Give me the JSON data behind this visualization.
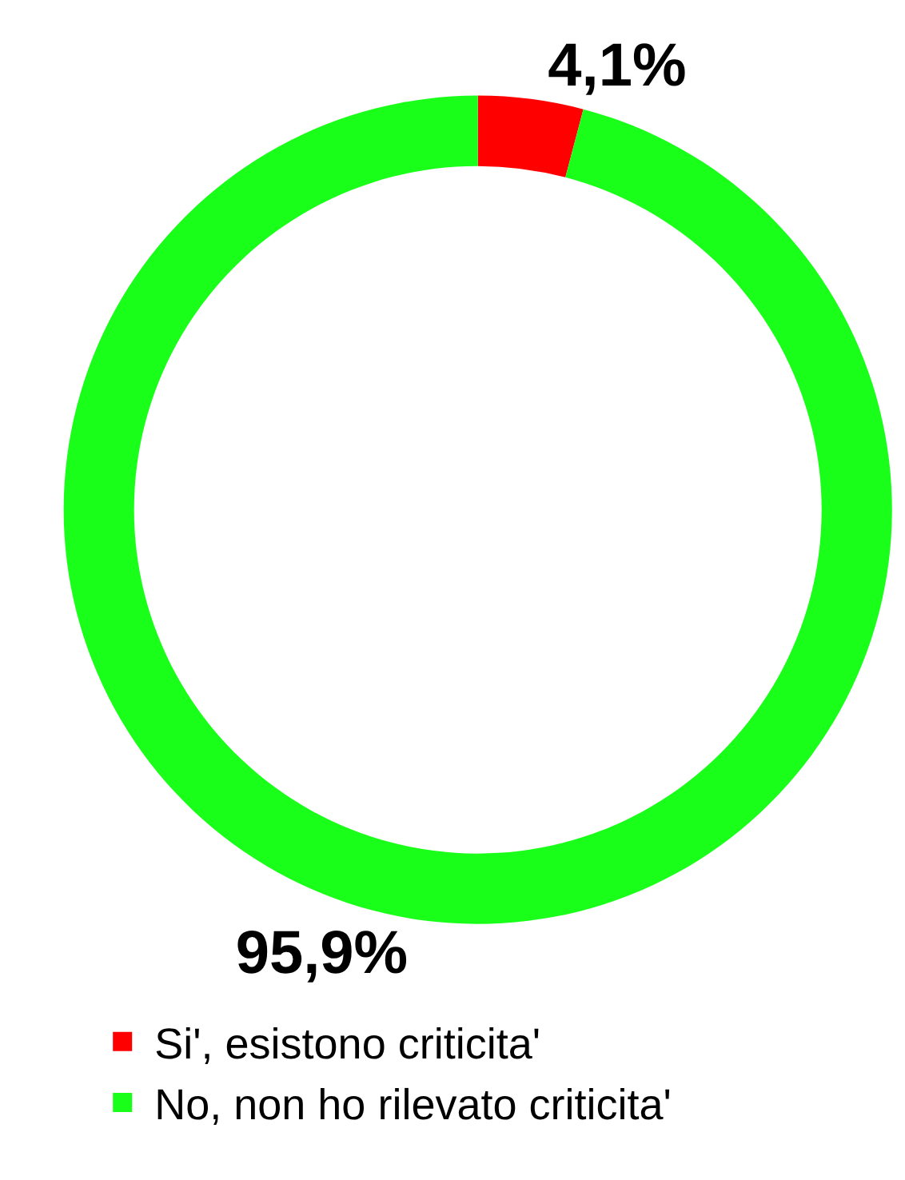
{
  "chart_data": {
    "type": "donut",
    "categories": [
      "Si', esistono criticita'",
      "No, non ho rilevato criticita'"
    ],
    "values": [
      4.1,
      95.9
    ],
    "value_labels": [
      "4,1%",
      "95,9%"
    ],
    "colors": [
      "#ff0000",
      "#1aff1a"
    ],
    "legend": "bottom"
  }
}
